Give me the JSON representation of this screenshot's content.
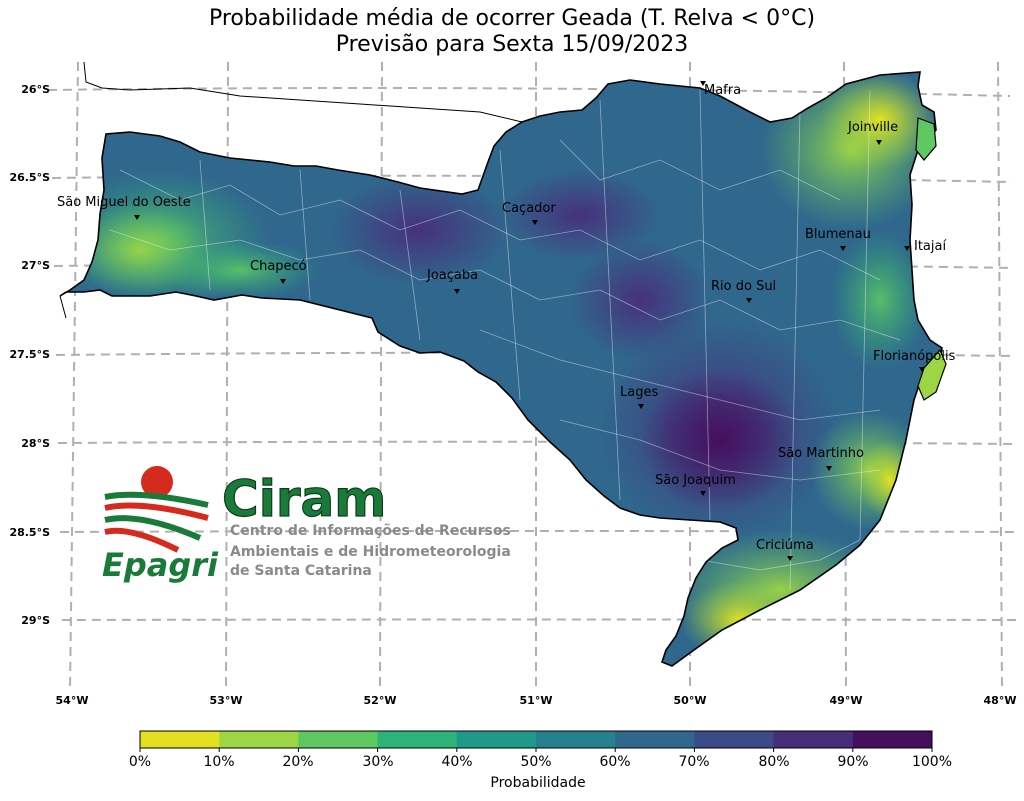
{
  "title_line1": "Probabilidade média de ocorrer Geada (T. Relva < 0°C)",
  "title_line2": "Previsão para Sexta 15/09/2023",
  "lat_labels": [
    "26°S",
    "26.5°S",
    "27°S",
    "27.5°S",
    "28°S",
    "28.5°S",
    "29°S"
  ],
  "lon_labels": [
    "54°W",
    "53°W",
    "52°W",
    "51°W",
    "50°W",
    "49°W",
    "48°W"
  ],
  "cities": [
    {
      "name": "Mafra"
    },
    {
      "name": "Joinville"
    },
    {
      "name": "São Miguel do Oeste"
    },
    {
      "name": "Caçador"
    },
    {
      "name": "Blumenau"
    },
    {
      "name": "Itajaí"
    },
    {
      "name": "Chapecó"
    },
    {
      "name": "Joaçaba"
    },
    {
      "name": "Rio do Sul"
    },
    {
      "name": "Florianópolis"
    },
    {
      "name": "Lages"
    },
    {
      "name": "São Martinho"
    },
    {
      "name": "São Joaquim"
    },
    {
      "name": "Criciúma"
    }
  ],
  "logo": {
    "brand": "Ciram",
    "org": "Epagri",
    "subtitle_1": "Centro de Informações de Recursos",
    "subtitle_2": "Ambientais e de Hidrometeorologia",
    "subtitle_3": "de Santa Catarina"
  },
  "colorbar": {
    "label": "Probabilidade",
    "ticks": [
      "0%",
      "10%",
      "20%",
      "30%",
      "40%",
      "50%",
      "60%",
      "70%",
      "80%",
      "90%",
      "100%"
    ],
    "colors": [
      "#e3e11f",
      "#9dd645",
      "#5ec762",
      "#2db37a",
      "#1f9a8a",
      "#27808e",
      "#30678d",
      "#3b4a89",
      "#482e7a",
      "#44105e"
    ]
  },
  "colors": {
    "grid": "#b0b0b0",
    "border": "#000000",
    "brand_green": "#1a7a3a",
    "brand_red": "#d52b1e",
    "logo_gray": "#8a8a8a"
  }
}
